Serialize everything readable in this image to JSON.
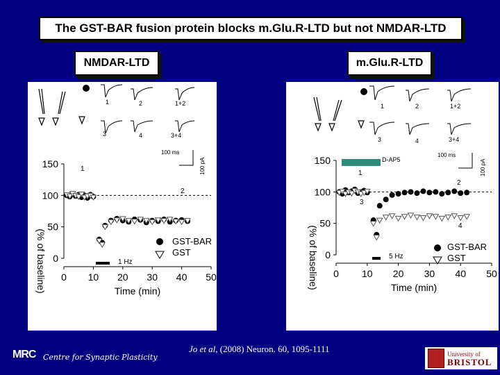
{
  "title": "The GST-BAR fusion protein blocks m.Glu.R-LTD but not NMDAR-LTD",
  "panels": {
    "left": {
      "label": "NMDAR-LTD",
      "trace_labels": [
        "1",
        "2",
        "1+2",
        "3",
        "4",
        "3+4"
      ],
      "scale_time": "100 ms",
      "scale_current": "100 pA",
      "y_label": "(% of baseline)",
      "x_label": "Time (min)",
      "stim_label": "1 Hz",
      "legend": [
        "GST-BAR",
        "GST"
      ],
      "epoch_labels": [
        "1",
        "2"
      ]
    },
    "right": {
      "label": "m.Glu.R-LTD",
      "trace_labels": [
        "1",
        "2",
        "1+2",
        "3",
        "4",
        "3+4"
      ],
      "scale_time": "100 ms",
      "scale_current": "100 pA",
      "y_label": "(% of baseline)",
      "x_label": "Time (min)",
      "drug_label": "D-AP5",
      "stim_label": "5 Hz",
      "legend": [
        "GST-BAR",
        "GST"
      ],
      "epoch_labels": [
        "1",
        "2",
        "3",
        "4"
      ]
    }
  },
  "chart_data": [
    {
      "type": "scatter",
      "xlabel": "Time (min)",
      "ylabel": "(% of baseline)",
      "xlim": [
        0,
        50
      ],
      "ylim": [
        0,
        150
      ],
      "xticks": [
        0,
        10,
        20,
        30,
        40,
        50
      ],
      "yticks": [
        0,
        50,
        100,
        150
      ],
      "series": [
        {
          "name": "GST-BAR",
          "marker": "filled-circle",
          "x": [
            1,
            2,
            3,
            4,
            5,
            6,
            7,
            8,
            9,
            10,
            12,
            13,
            14,
            16,
            18,
            20,
            22,
            24,
            26,
            28,
            30,
            32,
            34,
            36,
            38,
            40,
            42
          ],
          "y": [
            100,
            98,
            102,
            99,
            101,
            97,
            100,
            96,
            101,
            98,
            30,
            25,
            52,
            60,
            63,
            60,
            58,
            62,
            61,
            57,
            60,
            59,
            62,
            58,
            60,
            61,
            59
          ]
        },
        {
          "name": "GST",
          "marker": "open-triangle",
          "x": [
            1,
            2,
            3,
            4,
            5,
            6,
            7,
            8,
            9,
            10,
            12,
            13,
            14,
            16,
            18,
            20,
            22,
            24,
            26,
            28,
            30,
            32,
            34,
            36,
            38,
            40,
            42
          ],
          "y": [
            101,
            99,
            103,
            100,
            98,
            102,
            97,
            99,
            100,
            97,
            28,
            22,
            50,
            58,
            61,
            63,
            60,
            59,
            62,
            60,
            58,
            61,
            60,
            62,
            59,
            58,
            60
          ]
        }
      ]
    },
    {
      "type": "scatter",
      "xlabel": "Time (min)",
      "ylabel": "(% of baseline)",
      "xlim": [
        0,
        50
      ],
      "ylim": [
        0,
        150
      ],
      "xticks": [
        0,
        10,
        20,
        30,
        40,
        50
      ],
      "yticks": [
        0,
        50,
        100,
        150
      ],
      "series": [
        {
          "name": "GST-BAR",
          "marker": "filled-circle",
          "x": [
            1,
            2,
            3,
            4,
            5,
            6,
            7,
            8,
            9,
            10,
            12,
            13,
            14,
            16,
            18,
            20,
            22,
            24,
            26,
            28,
            30,
            32,
            34,
            36,
            38,
            40,
            42
          ],
          "y": [
            100,
            97,
            103,
            99,
            101,
            104,
            98,
            100,
            102,
            99,
            55,
            32,
            78,
            88,
            95,
            97,
            99,
            100,
            98,
            101,
            99,
            100,
            97,
            99,
            101,
            98,
            99
          ]
        },
        {
          "name": "GST",
          "marker": "open-triangle",
          "x": [
            1,
            2,
            3,
            4,
            5,
            6,
            7,
            8,
            9,
            10,
            12,
            13,
            14,
            16,
            18,
            20,
            22,
            24,
            26,
            28,
            30,
            32,
            34,
            36,
            38,
            40,
            42
          ],
          "y": [
            99,
            101,
            97,
            100,
            98,
            102,
            100,
            97,
            99,
            101,
            50,
            28,
            55,
            60,
            62,
            58,
            61,
            63,
            60,
            59,
            62,
            61,
            58,
            60,
            62,
            59,
            61
          ]
        }
      ]
    }
  ],
  "footer": {
    "logo": "MRC",
    "centre": "Centre for Synaptic Plasticity",
    "citation_authors": "Jo et al",
    "citation_rest": ", (2008) Neuron. 60, 1095-1111",
    "university_line1": "University of",
    "university_line2": "BRISTOL"
  },
  "colors": {
    "background": "#000080",
    "daP5_bar": "#2e8b7a"
  }
}
